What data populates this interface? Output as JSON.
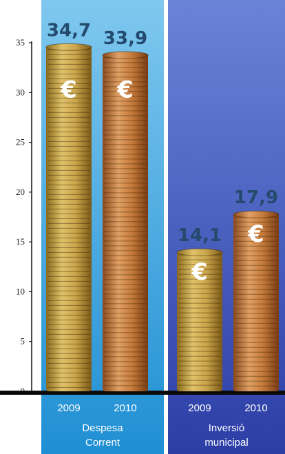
{
  "chart_data": {
    "type": "bar",
    "categories": [
      "2009",
      "2010",
      "2009",
      "2010"
    ],
    "groups": [
      {
        "label_lines": [
          "Despesa",
          "Corrent"
        ],
        "categories": [
          "2009",
          "2010"
        ],
        "values": [
          34.7,
          33.9
        ],
        "value_labels": [
          "34,7",
          "33,9"
        ],
        "color": "#3aa6dd"
      },
      {
        "label_lines": [
          "Inversió",
          "municipal"
        ],
        "categories": [
          "2009",
          "2010"
        ],
        "values": [
          14.1,
          17.9
        ],
        "value_labels": [
          "14,1",
          "17,9"
        ],
        "color": "#3a4fb3"
      }
    ],
    "yticks": [
      0,
      5,
      10,
      15,
      20,
      25,
      30,
      35
    ],
    "ylim": [
      0,
      35
    ],
    "symbol": "€",
    "colors": {
      "coin_gold": "#c9a44a",
      "coin_copper": "#c47a3a",
      "value_text": "#244a6e",
      "axis": "#111111"
    }
  }
}
